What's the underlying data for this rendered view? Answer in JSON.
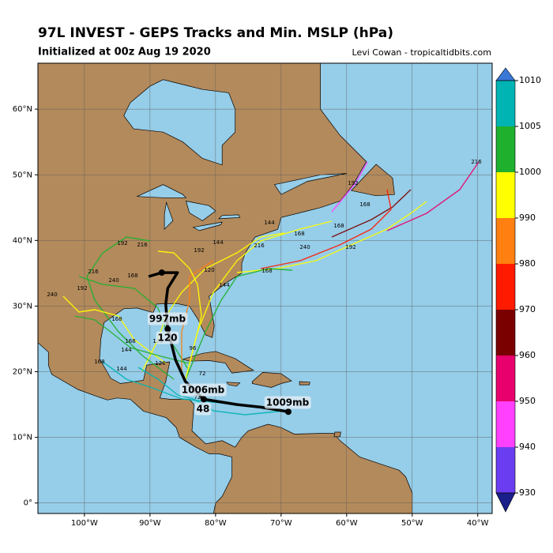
{
  "title": "97L INVEST - GEPS Tracks and Min. MSLP (hPa)",
  "subtitle": "Initialized at 00z Aug 19 2020",
  "credit": "Levi Cowan - tropicaltidbits.com",
  "map": {
    "xlim": [
      -107.1,
      -37.8
    ],
    "ylim": [
      -1.6,
      67
    ],
    "lon_ticks": [
      {
        "value": -100,
        "label": "100°W"
      },
      {
        "value": -90,
        "label": "90°W"
      },
      {
        "value": -80,
        "label": "80°W"
      },
      {
        "value": -70,
        "label": "70°W"
      },
      {
        "value": -60,
        "label": "60°W"
      },
      {
        "value": -50,
        "label": "50°W"
      },
      {
        "value": -40,
        "label": "40°W"
      }
    ],
    "lat_ticks": [
      {
        "value": 0,
        "label": "0°"
      },
      {
        "value": 10,
        "label": "10°N"
      },
      {
        "value": 20,
        "label": "20°N"
      },
      {
        "value": 30,
        "label": "30°N"
      },
      {
        "value": 40,
        "label": "40°N"
      },
      {
        "value": 50,
        "label": "50°N"
      },
      {
        "value": 60,
        "label": "60°N"
      }
    ],
    "mean_track": {
      "lon": [
        -68.9,
        -73.1,
        -76.7,
        -81.8,
        -84.6,
        -86.1,
        -87.3,
        -87.6,
        -87.3,
        -85.8,
        -88.2,
        -90.2
      ],
      "lat": [
        13.9,
        14.6,
        15.0,
        15.8,
        18.5,
        21.8,
        26.5,
        30.3,
        32.7,
        35.1,
        35.1,
        34.5
      ]
    },
    "annotations": [
      "1009mb",
      "1006mb",
      "48",
      "997mb",
      "120"
    ],
    "member_labels": [
      216,
      192,
      168,
      168,
      192,
      240,
      168,
      144,
      216,
      168,
      144,
      120,
      192,
      144,
      216,
      192,
      216,
      168,
      240,
      192,
      240,
      168,
      144,
      168,
      120,
      144,
      168,
      120,
      72,
      72,
      96
    ]
  },
  "colorbar": {
    "levels": [
      930,
      940,
      950,
      960,
      970,
      980,
      990,
      1000,
      1005,
      1010
    ],
    "colors": [
      "#6a3df0",
      "#ff40ff",
      "#e8006c",
      "#7a0000",
      "#ff1a00",
      "#ff7f10",
      "#ffff00",
      "#1fb02e",
      "#00b4b4"
    ],
    "under_color": "#1a1f8a",
    "over_color": "#3a78d8"
  }
}
